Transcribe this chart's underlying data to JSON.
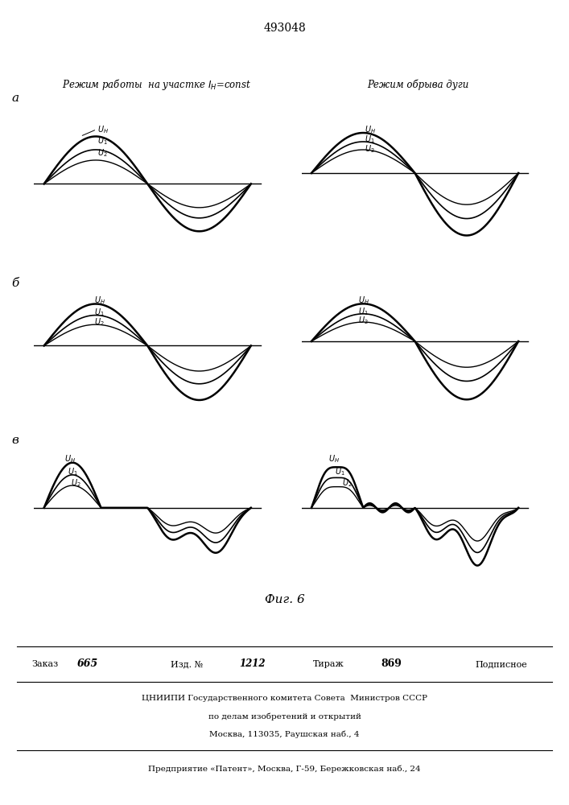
{
  "patent_number": "493048",
  "fig_label": "Фиг. 6",
  "row_labels": [
    "а",
    "б",
    "в"
  ],
  "left_title": "Режим работы  на участке $I_{H}$=const",
  "right_title": "Режим обрыва дуги",
  "footer_line1": "ЦНИИПИ Государственного комитета Совета  Министров СССР",
  "footer_line2": "по делам изобретений и открытий",
  "footer_line3": "Москва, 113035, Раушская наб., 4",
  "footer_line4": "Предприятие «Патент», Москва, Г-59, Бережковская наб., 24",
  "zakaz_label": "Заказ",
  "zakaz_value": "665",
  "izd_label": "Изд. №",
  "izd_value": "1212",
  "tirazh_label": "Тираж",
  "tirazh_value": "869",
  "podpisnoe": "Подписное",
  "bg_color": "#ffffff"
}
